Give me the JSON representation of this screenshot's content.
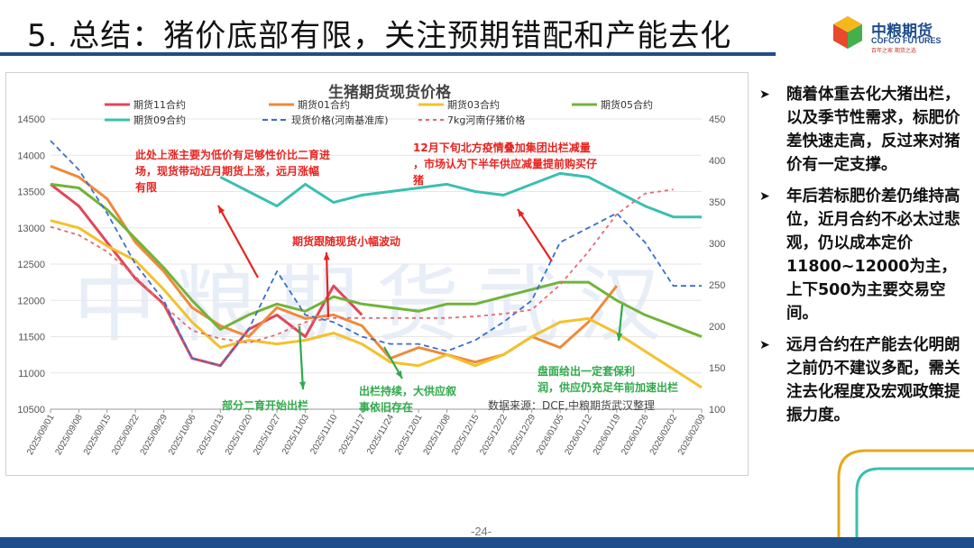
{
  "slide": {
    "title": "5. 总结：猪价底部有限，关注预期错配和产能去化",
    "page_number": "-24-"
  },
  "logo": {
    "cn": "中粮期货",
    "en": "COFCO FUTURES",
    "tagline": "百年之家 期货之选"
  },
  "bullets": [
    "随着体重去化大猪出栏，以及季节性需求，标肥价差快速走高，反过来对猪价有一定支撑。",
    "年后若标肥价差仍维持高位，近月合约不必太过悲观，仍以成本定价11800~12000为主，上下500为主要交易空间。",
    "远月合约在产能去化明朗之前仍不建议多配，需关注去化程度及宏观政策提振力度。"
  ],
  "chart_data": {
    "type": "line",
    "title": "生猪期货现货价格",
    "source": "数据来源：DCE,中粮期货武汉整理",
    "watermark": "中粮期货武汉",
    "y_left": {
      "min": 10500,
      "max": 14500,
      "ticks": [
        10500,
        11000,
        11500,
        12000,
        12500,
        13000,
        13500,
        14000,
        14500
      ]
    },
    "y_right": {
      "min": 100,
      "max": 450,
      "ticks": [
        100,
        150,
        200,
        250,
        300,
        350,
        400,
        450
      ]
    },
    "x_labels": [
      "2025/09/01",
      "2025/09/08",
      "2025/09/15",
      "2025/09/22",
      "2025/09/29",
      "2025/10/06",
      "2025/10/13",
      "2025/10/20",
      "2025/10/27",
      "2025/11/03",
      "2025/11/10",
      "2025/11/17",
      "2025/11/24",
      "2025/12/01",
      "2025/12/08",
      "2025/12/15",
      "2025/12/22",
      "2025/12/29",
      "2026/01/05",
      "2026/01/12",
      "2026/01/19",
      "2026/01/26",
      "2026/02/02",
      "2026/02/09"
    ],
    "series": [
      {
        "name": "期货11合约",
        "color": "#e0475a",
        "dash": "",
        "axis": "left",
        "start": 0,
        "end": 11,
        "values": [
          13600,
          13300,
          12800,
          12300,
          11950,
          11200,
          11100,
          11600,
          11800,
          11500,
          12200,
          11800
        ]
      },
      {
        "name": "期货01合约",
        "color": "#ef8a3a",
        "dash": "",
        "axis": "left",
        "start": 0,
        "end": 20,
        "values": [
          13850,
          13700,
          13400,
          12800,
          12400,
          11900,
          11650,
          11500,
          11900,
          11750,
          11800,
          11650,
          11200,
          11350,
          11250,
          11150,
          11250,
          11500,
          11350,
          11700,
          12200
        ]
      },
      {
        "name": "期货03合约",
        "color": "#f2c12e",
        "dash": "",
        "axis": "left",
        "start": 0,
        "end": 23,
        "values": [
          13100,
          13000,
          12750,
          12550,
          12150,
          11700,
          11350,
          11450,
          11400,
          11450,
          11550,
          11400,
          11150,
          11100,
          11250,
          11100,
          11250,
          11500,
          11700,
          11750,
          11550,
          11300,
          11050,
          10800
        ]
      },
      {
        "name": "期货05合约",
        "color": "#72b33a",
        "dash": "",
        "axis": "left",
        "start": 0,
        "end": 23,
        "values": [
          13600,
          13550,
          13250,
          12850,
          12450,
          12000,
          11600,
          11800,
          11950,
          11850,
          12050,
          11950,
          11900,
          11850,
          11950,
          11950,
          12050,
          12150,
          12250,
          12250,
          12000,
          11800,
          11650,
          11500
        ]
      },
      {
        "name": "期货09合约",
        "color": "#3bbfb0",
        "dash": "",
        "axis": "left",
        "start": 6,
        "end": 23,
        "values": [
          13700,
          13500,
          13300,
          13600,
          13350,
          13450,
          13500,
          13550,
          13600,
          13500,
          13450,
          13600,
          13750,
          13700,
          13500,
          13300,
          13150,
          13150
        ]
      },
      {
        "name": "现货价格(河南基准库)",
        "color": "#3a6fd0",
        "dash": "6,4",
        "axis": "left",
        "start": 0,
        "end": 23,
        "values": [
          14200,
          13800,
          13200,
          12500,
          12000,
          11200,
          11100,
          11600,
          12400,
          11800,
          11700,
          11500,
          11400,
          11400,
          11300,
          11450,
          11700,
          12000,
          12800,
          13000,
          13200,
          12800,
          12200,
          12200
        ]
      },
      {
        "name": "7kg河南仔猪价格",
        "color": "#e46a72",
        "dash": "4,4",
        "axis": "right",
        "start": 0,
        "end": 22,
        "values": [
          320,
          310,
          290,
          260,
          225,
          195,
          185,
          180,
          190,
          205,
          210,
          210,
          210,
          210,
          210,
          212,
          215,
          220,
          250,
          290,
          335,
          360,
          365
        ]
      }
    ],
    "annotations": [
      "此处上涨主要为低价有足够性价比二育进场，现货带动近月期货上涨，远月涨幅有限",
      "期货跟随现货小幅波动",
      "12月下旬北方疫情叠加集团出栏减量，市场认为下半年供应减量提前购买仔猪",
      "部分二育开始出栏",
      "出栏持续，大供应叙事依旧存在",
      "盘面给出一定套保利润，供应仍充足年前加速出栏"
    ],
    "colors": {
      "brand": "#1e4d8c",
      "accent_red": "#e8231f",
      "accent_green": "#2eaa4a"
    }
  }
}
